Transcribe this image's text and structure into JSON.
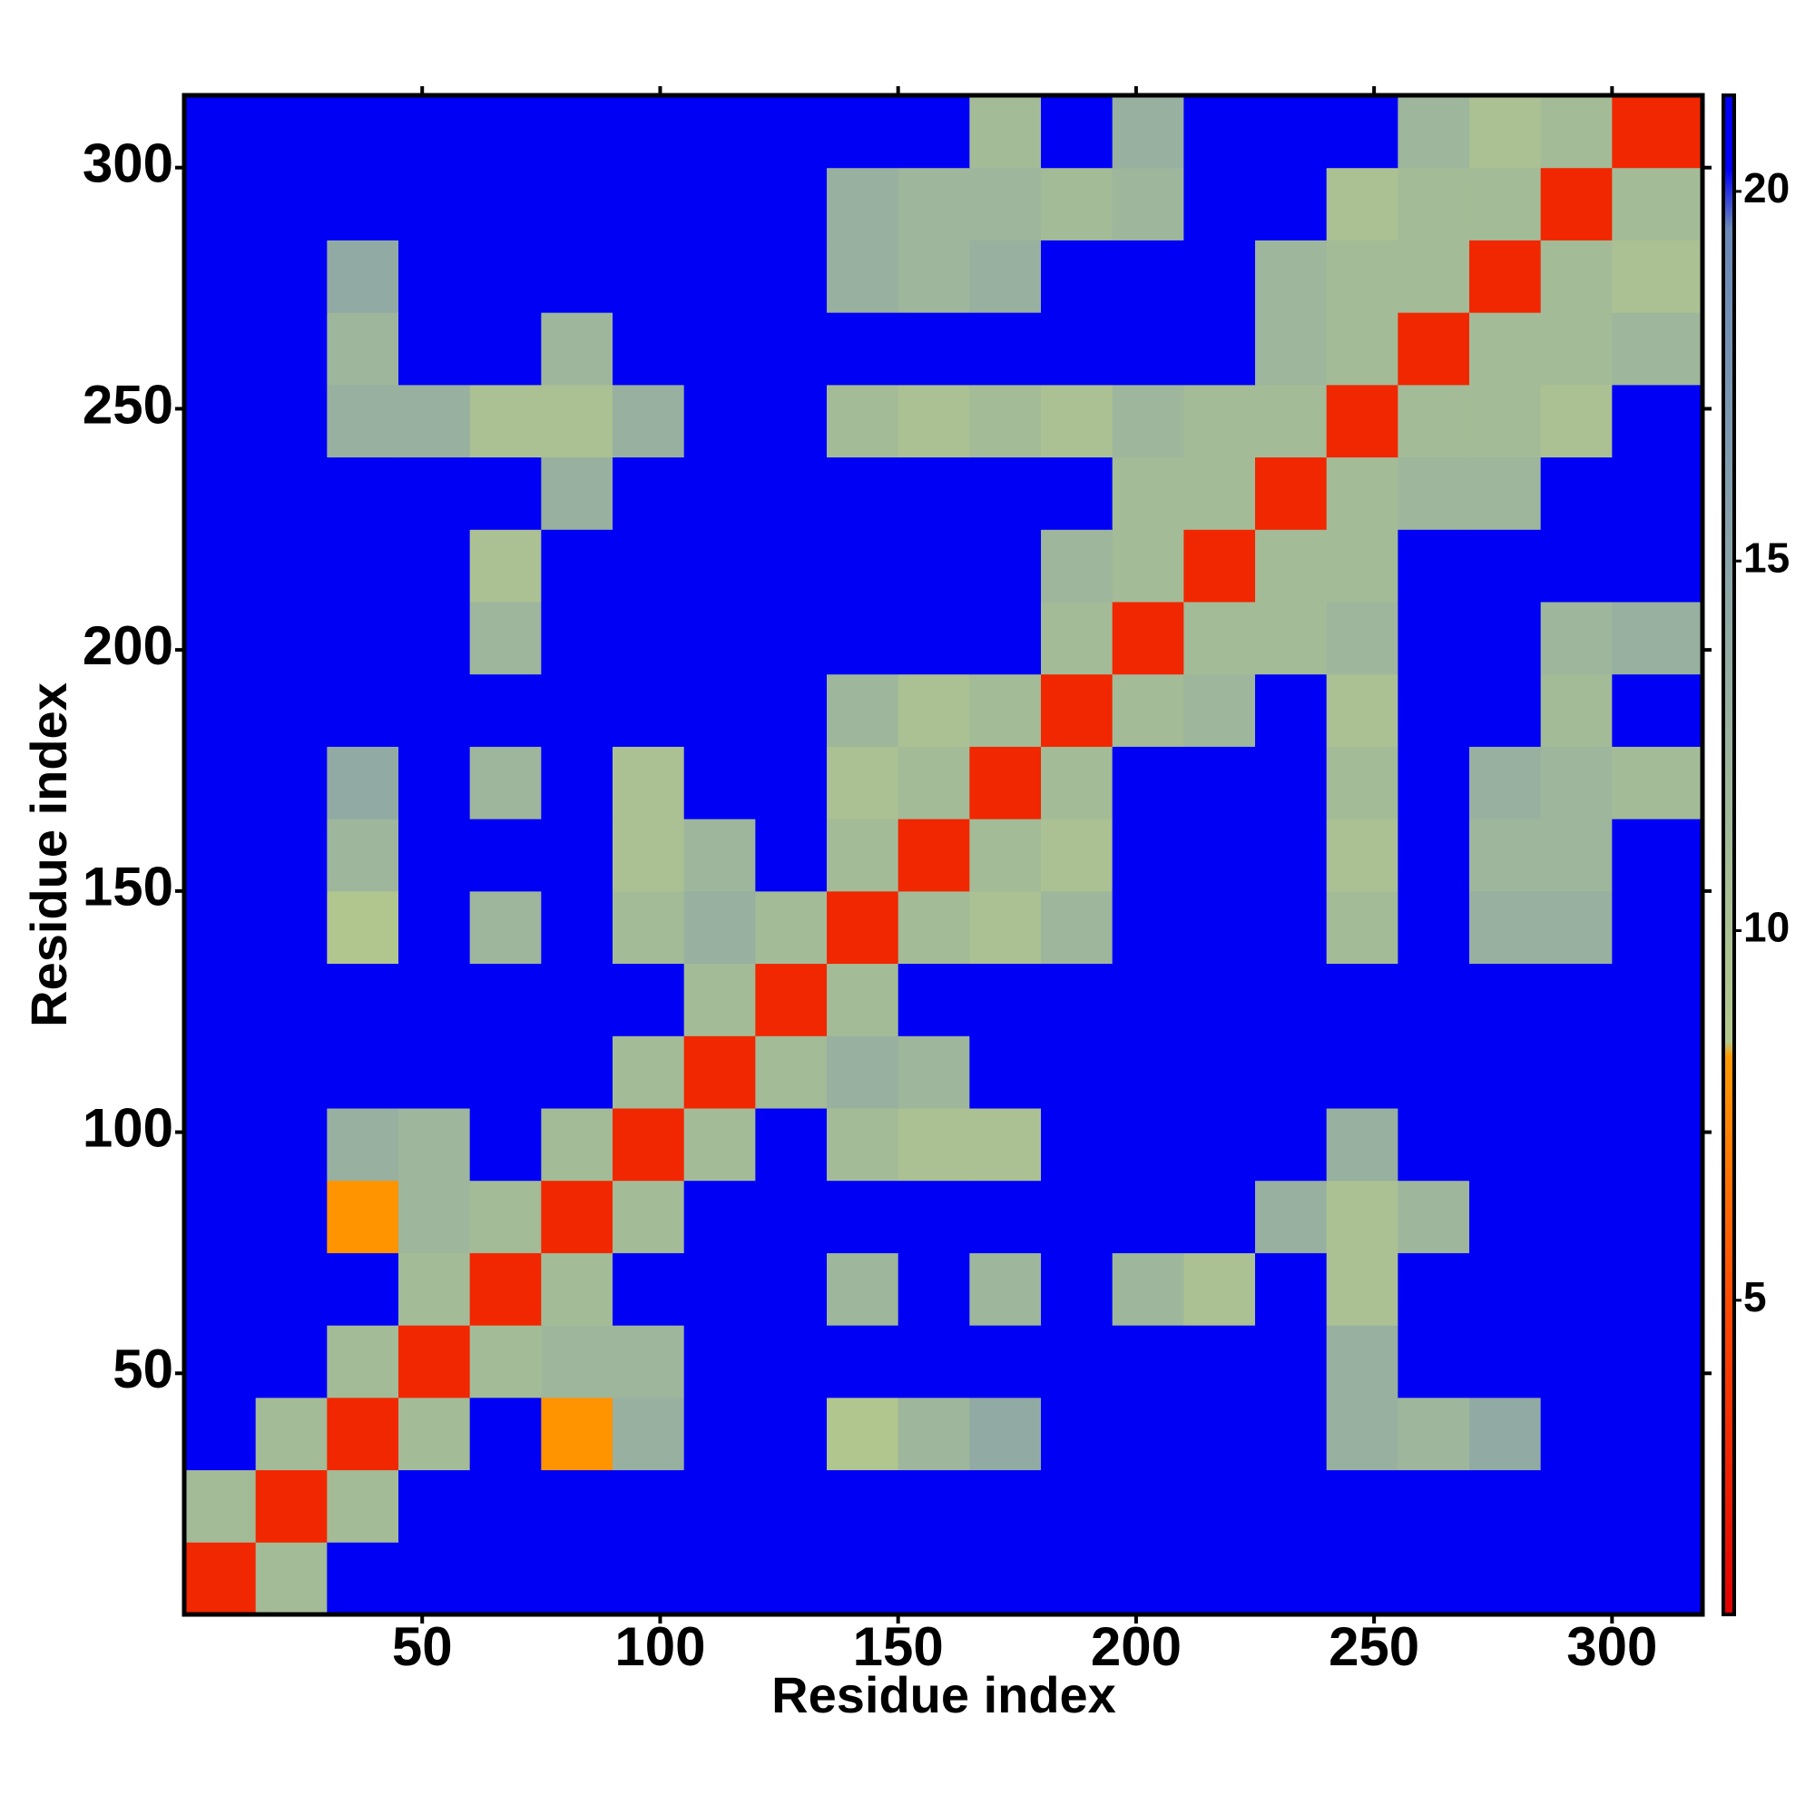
{
  "chart_data": {
    "type": "heatmap",
    "xlabel": "Residue index",
    "ylabel": "Residue index",
    "x_edges": [
      0,
      15,
      30,
      45,
      60,
      75,
      90,
      105,
      120,
      135,
      150,
      165,
      180,
      195,
      210,
      225,
      240,
      255,
      270,
      285,
      300,
      319
    ],
    "y_edges": [
      0,
      15,
      30,
      45,
      60,
      75,
      90,
      105,
      120,
      135,
      150,
      165,
      180,
      195,
      210,
      225,
      240,
      255,
      270,
      285,
      300,
      315
    ],
    "xlim": [
      0,
      319
    ],
    "ylim": [
      0,
      315
    ],
    "xticks": [
      50,
      100,
      150,
      200,
      250,
      300
    ],
    "yticks": [
      50,
      100,
      150,
      200,
      250,
      300
    ],
    "colorbar": {
      "zlim": [
        0.75,
        21.3
      ],
      "ticks": [
        5,
        10,
        15,
        20
      ]
    },
    "colorscale": [
      [
        0.75,
        "#e00000"
      ],
      [
        5,
        "#ff4a00"
      ],
      [
        8.3,
        "#ff9a00"
      ],
      [
        8.5,
        "#b4c98c"
      ],
      [
        13,
        "#98b0a0"
      ],
      [
        19.5,
        "#6a88b8"
      ],
      [
        20.3,
        "#0000f5"
      ],
      [
        21.3,
        "#0000f5"
      ]
    ],
    "z": [
      [
        3,
        11,
        21,
        21,
        21,
        21,
        21,
        21,
        21,
        21,
        21,
        21,
        21,
        21,
        21,
        21,
        21,
        21,
        21,
        21,
        21
      ],
      [
        11,
        3,
        11,
        21,
        21,
        21,
        21,
        21,
        21,
        21,
        21,
        21,
        21,
        21,
        21,
        21,
        21,
        21,
        21,
        21,
        21
      ],
      [
        21,
        11,
        3,
        11,
        21,
        8,
        13,
        21,
        21,
        9,
        12,
        14,
        21,
        21,
        21,
        21,
        13,
        12,
        14,
        21,
        21
      ],
      [
        21,
        21,
        11,
        3,
        11,
        12,
        12,
        21,
        21,
        21,
        21,
        21,
        21,
        21,
        21,
        21,
        13,
        21,
        21,
        21,
        21
      ],
      [
        21,
        21,
        21,
        11,
        3,
        11,
        21,
        21,
        21,
        12,
        21,
        12,
        21,
        12,
        10,
        21,
        10,
        21,
        21,
        21,
        21
      ],
      [
        21,
        21,
        8,
        12,
        11,
        3,
        11,
        21,
        21,
        21,
        21,
        21,
        21,
        21,
        21,
        13,
        10,
        12,
        21,
        21,
        21
      ],
      [
        21,
        21,
        13,
        12,
        21,
        11,
        3,
        11,
        21,
        11,
        10,
        10,
        21,
        21,
        21,
        21,
        13,
        21,
        21,
        21,
        21
      ],
      [
        21,
        21,
        21,
        21,
        21,
        21,
        11,
        3,
        11,
        13,
        12,
        21,
        21,
        21,
        21,
        21,
        21,
        21,
        21,
        21,
        21
      ],
      [
        21,
        21,
        21,
        21,
        21,
        21,
        21,
        11,
        3,
        11,
        21,
        21,
        21,
        21,
        21,
        21,
        21,
        21,
        21,
        21,
        21
      ],
      [
        21,
        21,
        9,
        21,
        12,
        21,
        11,
        13,
        11,
        3,
        11,
        10,
        12,
        21,
        21,
        21,
        11,
        21,
        13,
        13,
        21
      ],
      [
        21,
        21,
        12,
        21,
        21,
        21,
        10,
        12,
        21,
        11,
        3,
        11,
        10,
        21,
        21,
        21,
        10,
        21,
        12,
        12,
        21
      ],
      [
        21,
        21,
        14,
        21,
        12,
        21,
        10,
        21,
        21,
        10,
        11,
        3,
        11,
        21,
        21,
        21,
        11,
        21,
        13,
        12,
        11
      ],
      [
        21,
        21,
        21,
        21,
        21,
        21,
        21,
        21,
        21,
        12,
        10,
        11,
        3,
        11,
        12,
        21,
        10,
        21,
        21,
        11,
        21
      ],
      [
        21,
        21,
        21,
        21,
        12,
        21,
        21,
        21,
        21,
        21,
        21,
        21,
        11,
        3,
        11,
        11,
        12,
        21,
        21,
        12,
        13
      ],
      [
        21,
        21,
        21,
        21,
        10,
        21,
        21,
        21,
        21,
        21,
        21,
        21,
        12,
        11,
        3,
        11,
        11,
        21,
        21,
        21,
        21
      ],
      [
        21,
        21,
        21,
        21,
        21,
        13,
        21,
        21,
        21,
        21,
        21,
        21,
        21,
        11,
        11,
        3,
        11,
        12,
        12,
        21,
        21
      ],
      [
        21,
        21,
        13,
        13,
        10,
        10,
        13,
        21,
        21,
        11,
        10,
        11,
        10,
        12,
        11,
        11,
        3,
        11,
        11,
        10,
        21
      ],
      [
        21,
        21,
        12,
        21,
        21,
        12,
        21,
        21,
        21,
        21,
        21,
        21,
        21,
        21,
        21,
        12,
        11,
        3,
        11,
        11,
        12
      ],
      [
        21,
        21,
        14,
        21,
        21,
        21,
        21,
        21,
        21,
        13,
        12,
        13,
        21,
        21,
        21,
        12,
        11,
        11,
        3,
        11,
        10
      ],
      [
        21,
        21,
        21,
        21,
        21,
        21,
        21,
        21,
        21,
        13,
        12,
        12,
        11,
        12,
        21,
        21,
        10,
        11,
        11,
        3,
        11
      ],
      [
        21,
        21,
        21,
        21,
        21,
        21,
        21,
        21,
        21,
        21,
        21,
        11,
        21,
        13,
        21,
        21,
        21,
        12,
        10,
        11,
        3
      ]
    ]
  }
}
